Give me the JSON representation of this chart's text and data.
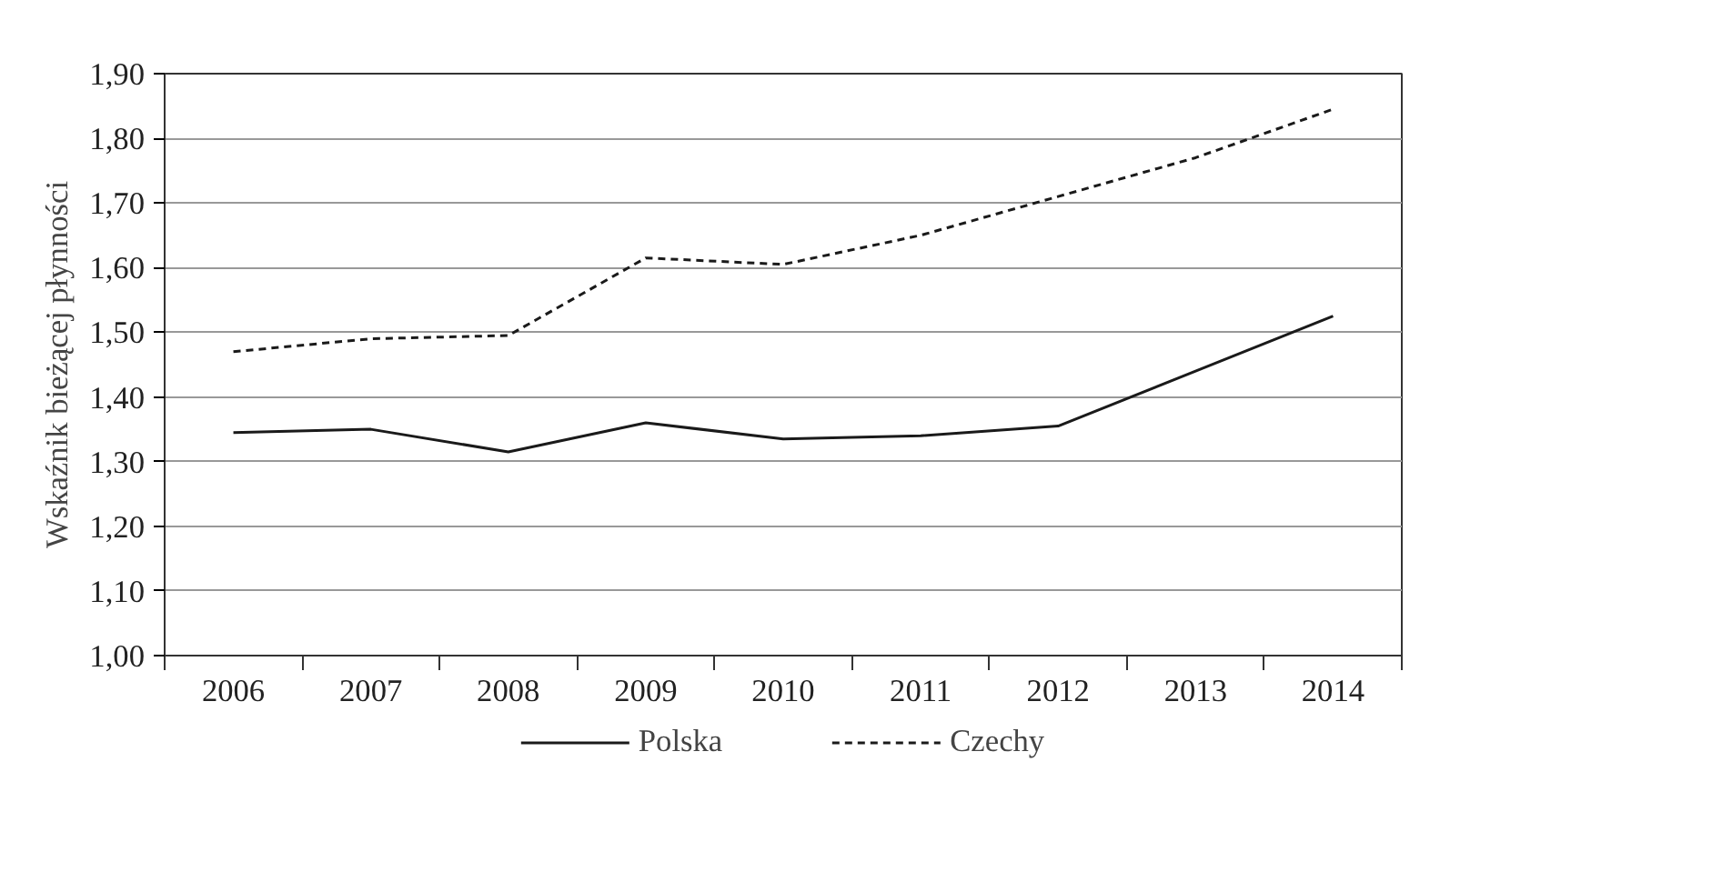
{
  "chart_data": {
    "type": "line",
    "ylabel": "Wskaźnik bieżącej płynności",
    "categories": [
      "2006",
      "2007",
      "2008",
      "2009",
      "2010",
      "2011",
      "2012",
      "2013",
      "2014"
    ],
    "series": [
      {
        "name": "Polska",
        "color": "#1a1a1a",
        "line_style": "solid",
        "values": [
          1.345,
          1.35,
          1.315,
          1.36,
          1.335,
          1.34,
          1.355,
          1.44,
          1.525
        ]
      },
      {
        "name": "Czechy",
        "color": "#1a1a1a",
        "line_style": "dashed",
        "values": [
          1.47,
          1.49,
          1.495,
          1.615,
          1.605,
          1.65,
          1.71,
          1.77,
          1.845
        ]
      }
    ],
    "ylim": [
      1.0,
      1.9
    ],
    "yticks": [
      {
        "value": 1.0,
        "label": "1,00"
      },
      {
        "value": 1.1,
        "label": "1,10"
      },
      {
        "value": 1.2,
        "label": "1,20"
      },
      {
        "value": 1.3,
        "label": "1,30"
      },
      {
        "value": 1.4,
        "label": "1,40"
      },
      {
        "value": 1.5,
        "label": "1,50"
      },
      {
        "value": 1.6,
        "label": "1,60"
      },
      {
        "value": 1.7,
        "label": "1,70"
      },
      {
        "value": 1.8,
        "label": "1,80"
      },
      {
        "value": 1.9,
        "label": "1,90"
      }
    ],
    "grid": "y",
    "legend": "bottom",
    "marker": "none"
  }
}
